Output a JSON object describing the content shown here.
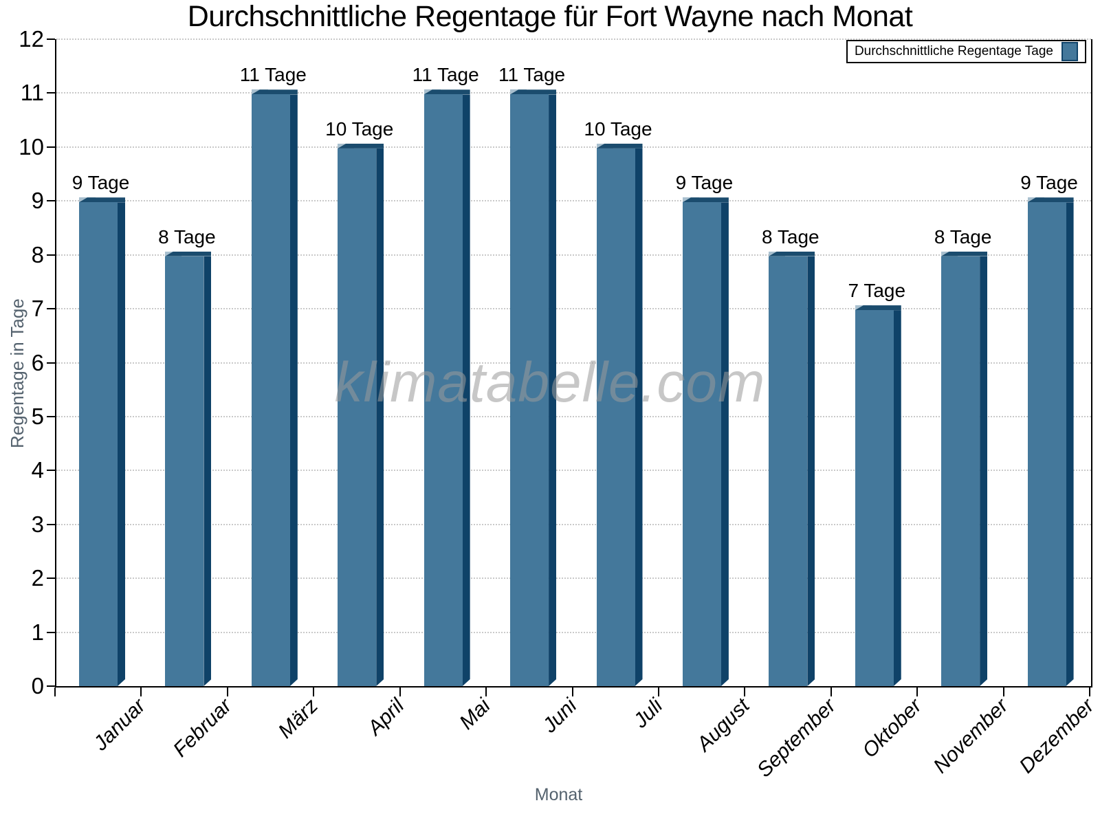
{
  "title": "Durchschnittliche Regentage für Fort Wayne nach Monat",
  "watermark": "klimatabelle.com",
  "legend": {
    "label": "Durchschnittliche Regentage Tage"
  },
  "x_axis": {
    "title": "Monat"
  },
  "y_axis": {
    "title": "Regentage in Tage",
    "ticks": [
      0,
      1,
      2,
      3,
      4,
      5,
      6,
      7,
      8,
      9,
      10,
      11,
      12
    ]
  },
  "chart_data": {
    "type": "bar",
    "title": "Durchschnittliche Regentage für Fort Wayne nach Monat",
    "categories": [
      "Januar",
      "Februar",
      "März",
      "April",
      "Mai",
      "Juni",
      "Juli",
      "August",
      "September",
      "Oktober",
      "November",
      "Dezember"
    ],
    "values": [
      9,
      8,
      11,
      10,
      11,
      11,
      10,
      9,
      8,
      7,
      8,
      9
    ],
    "bar_labels": [
      "9 Tage",
      "8 Tage",
      "11 Tage",
      "10 Tage",
      "11 Tage",
      "11 Tage",
      "10 Tage",
      "9 Tage",
      "8 Tage",
      "7 Tage",
      "8 Tage",
      "9 Tage"
    ],
    "series": [
      {
        "name": "Durchschnittliche Regentage Tage",
        "values": [
          9,
          8,
          11,
          10,
          11,
          11,
          10,
          9,
          8,
          7,
          8,
          9
        ]
      }
    ],
    "xlabel": "Monat",
    "ylabel": "Regentage in Tage",
    "ylim": [
      0,
      12
    ],
    "grid": "horizontal-dotted",
    "legend_position": "top-right"
  },
  "colors": {
    "bar_face": "#44789B",
    "bar_edge": "#0F4268",
    "bar_cap": "#1B4C6E",
    "bar_highlight": "#A9C0CF",
    "grid": "#C9C9C9",
    "axis": "#000000",
    "axis_title": "#54626E",
    "watermark": "#9B9B9B"
  }
}
